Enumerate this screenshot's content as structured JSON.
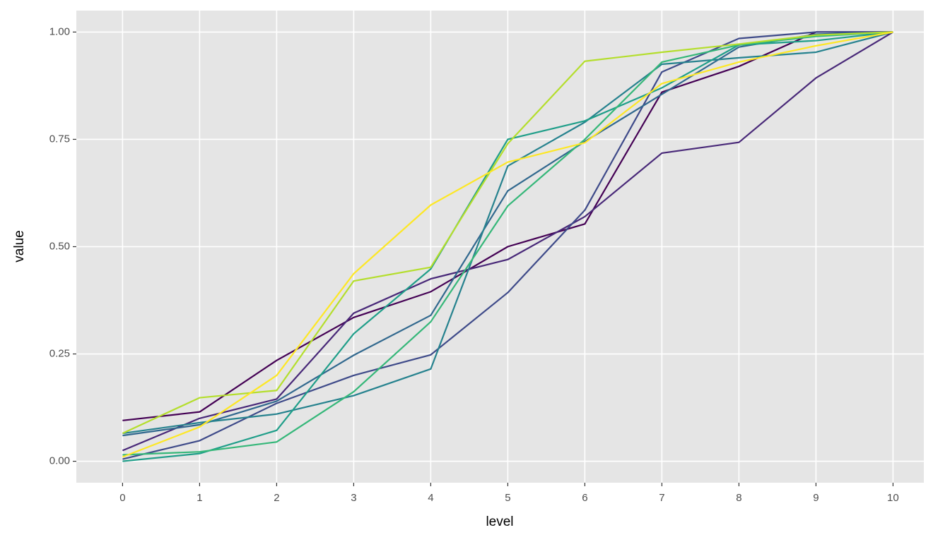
{
  "chart_data": {
    "type": "line",
    "x_label": "level",
    "y_label": "value",
    "x": [
      0,
      1,
      2,
      3,
      4,
      5,
      6,
      7,
      8,
      9,
      10
    ],
    "xlim": [
      -0.6,
      10.4
    ],
    "xticks": [
      0,
      1,
      2,
      3,
      4,
      5,
      6,
      7,
      8,
      9,
      10
    ],
    "ylim": [
      -0.05,
      1.05
    ],
    "yticks": [
      {
        "value": 0,
        "label": "0.00"
      },
      {
        "value": 0.25,
        "label": "0.25"
      },
      {
        "value": 0.5,
        "label": "0.50"
      },
      {
        "value": 0.75,
        "label": "0.75"
      },
      {
        "value": 1,
        "label": "1.00"
      }
    ],
    "grid": true,
    "series": [
      {
        "color": "#440154",
        "values": [
          0.095,
          0.115,
          0.235,
          0.335,
          0.395,
          0.5,
          0.553,
          0.86,
          0.92,
          1.0,
          1.0
        ]
      },
      {
        "color": "#482878",
        "values": [
          0.025,
          0.1,
          0.145,
          0.345,
          0.425,
          0.47,
          0.57,
          0.718,
          0.743,
          0.893,
          1.0
        ]
      },
      {
        "color": "#3e4a89",
        "values": [
          0.005,
          0.048,
          0.135,
          0.2,
          0.248,
          0.393,
          0.585,
          0.907,
          0.985,
          1.0,
          1.0
        ]
      },
      {
        "color": "#31688e",
        "values": [
          0.06,
          0.085,
          0.14,
          0.247,
          0.34,
          0.63,
          0.745,
          0.855,
          0.965,
          0.995,
          1.0
        ]
      },
      {
        "color": "#26828e",
        "values": [
          0.065,
          0.09,
          0.11,
          0.153,
          0.215,
          0.688,
          0.79,
          0.925,
          0.94,
          0.953,
          1.0
        ]
      },
      {
        "color": "#1f9e89",
        "values": [
          0.0,
          0.018,
          0.072,
          0.297,
          0.448,
          0.75,
          0.793,
          0.87,
          0.97,
          0.98,
          1.0
        ]
      },
      {
        "color": "#35b779",
        "values": [
          0.015,
          0.022,
          0.045,
          0.162,
          0.325,
          0.595,
          0.75,
          0.93,
          0.97,
          0.99,
          1.0
        ]
      },
      {
        "color": "#b4de2c",
        "values": [
          0.065,
          0.148,
          0.165,
          0.42,
          0.452,
          0.74,
          0.932,
          0.953,
          0.972,
          0.993,
          1.0
        ]
      },
      {
        "color": "#fde725",
        "values": [
          0.01,
          0.08,
          0.2,
          0.437,
          0.597,
          0.697,
          0.742,
          0.88,
          0.93,
          0.968,
          1.0
        ]
      }
    ]
  }
}
